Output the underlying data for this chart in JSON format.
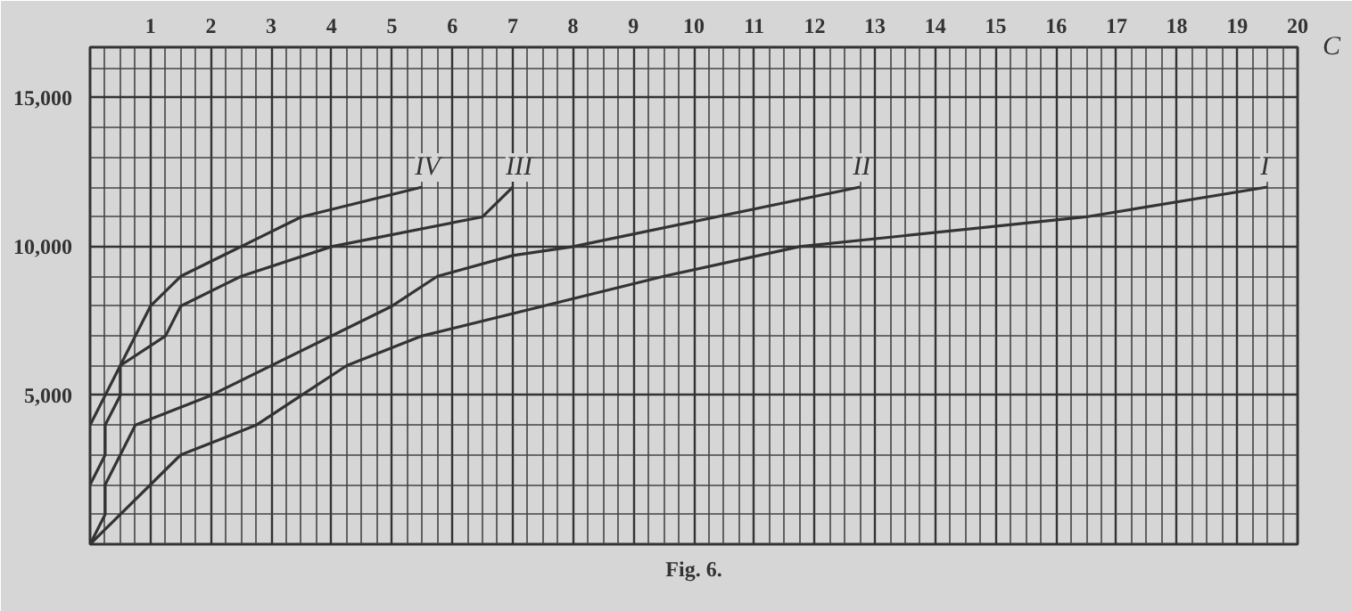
{
  "chart_data": {
    "type": "line",
    "xlabel": "C",
    "annotations": [
      "Fig. 6."
    ],
    "xlim": [
      0,
      20
    ],
    "ylim": [
      0,
      16700
    ],
    "xticks": [
      1,
      2,
      3,
      4,
      5,
      6,
      7,
      8,
      9,
      10,
      11,
      12,
      13,
      14,
      15,
      16,
      17,
      18,
      19,
      20
    ],
    "yticks": [
      {
        "value": 5000,
        "label": "5,000"
      },
      {
        "value": 10000,
        "label": "10,000"
      },
      {
        "value": 15000,
        "label": "15,000"
      }
    ],
    "grid": true,
    "marker": "none",
    "line_style": "solid",
    "series": [
      {
        "name": "I",
        "color": "#333333",
        "x": [
          0,
          1.5,
          2.75,
          3.5,
          4.25,
          5.5,
          9.5,
          11.75,
          16.5,
          19.5
        ],
        "values": [
          0,
          3000,
          4000,
          5000,
          6000,
          7000,
          9000,
          10000,
          11000,
          12000
        ]
      },
      {
        "name": "II",
        "color": "#333333",
        "x": [
          0,
          0.25,
          0.25,
          0.5,
          0.75,
          2,
          5,
          5.75,
          7,
          8,
          12.75
        ],
        "values": [
          0,
          1000,
          2000,
          3000,
          4000,
          5000,
          8000,
          9000,
          9700,
          10000,
          12000
        ]
      },
      {
        "name": "III",
        "color": "#333333",
        "x": [
          0,
          0.25,
          0.25,
          0.5,
          0.5,
          1.25,
          1.5,
          2.5,
          4,
          6.5,
          7
        ],
        "values": [
          2000,
          3000,
          4000,
          5000,
          6000,
          7000,
          8000,
          9000,
          10000,
          11000,
          12000
        ]
      },
      {
        "name": "IV",
        "color": "#333333",
        "x": [
          0,
          0.5,
          1,
          1.5,
          2.5,
          3.5,
          5.5
        ],
        "values": [
          4000,
          6000,
          8000,
          9000,
          10000,
          11000,
          12000
        ]
      }
    ]
  }
}
